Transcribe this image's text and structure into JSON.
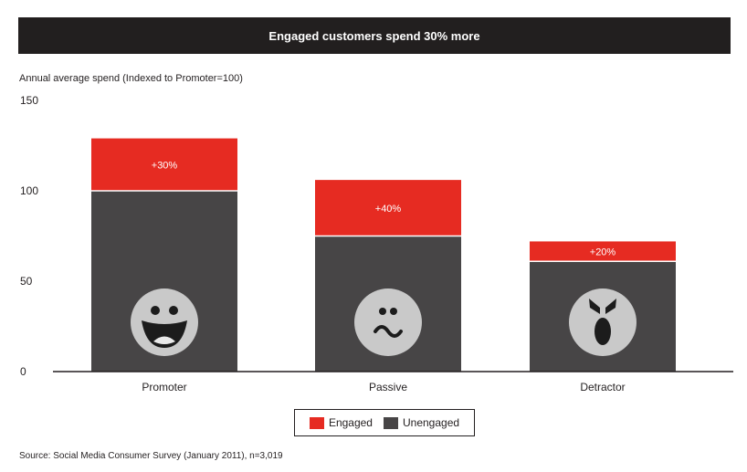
{
  "title": "Engaged customers spend 30% more",
  "subtitle": "Annual average spend (Indexed to Promoter=100)",
  "source": "Source: Social Media Consumer Survey (January 2011), n=3,019",
  "colors": {
    "engaged": "#e62b22",
    "unengaged": "#474546",
    "face": "#c9c9c9",
    "feature": "#1c1c1c"
  },
  "chart_data": {
    "type": "bar",
    "stacked": true,
    "categories": [
      "Promoter",
      "Passive",
      "Detractor"
    ],
    "series": [
      {
        "name": "Unengaged",
        "values": [
          100,
          75,
          61
        ]
      },
      {
        "name": "Engaged",
        "values": [
          29,
          31,
          11
        ]
      }
    ],
    "bar_labels": [
      "+30%",
      "+40%",
      "+20%"
    ],
    "ylim": [
      0,
      150
    ],
    "yticks": [
      0,
      50,
      100,
      150
    ],
    "icons": [
      "happy-face-icon",
      "neutral-face-icon",
      "angry-face-icon"
    ],
    "legend": [
      {
        "label": "Engaged",
        "color": "#e62b22"
      },
      {
        "label": "Unengaged",
        "color": "#474546"
      }
    ],
    "legend_position": "bottom-center",
    "grid": false
  }
}
